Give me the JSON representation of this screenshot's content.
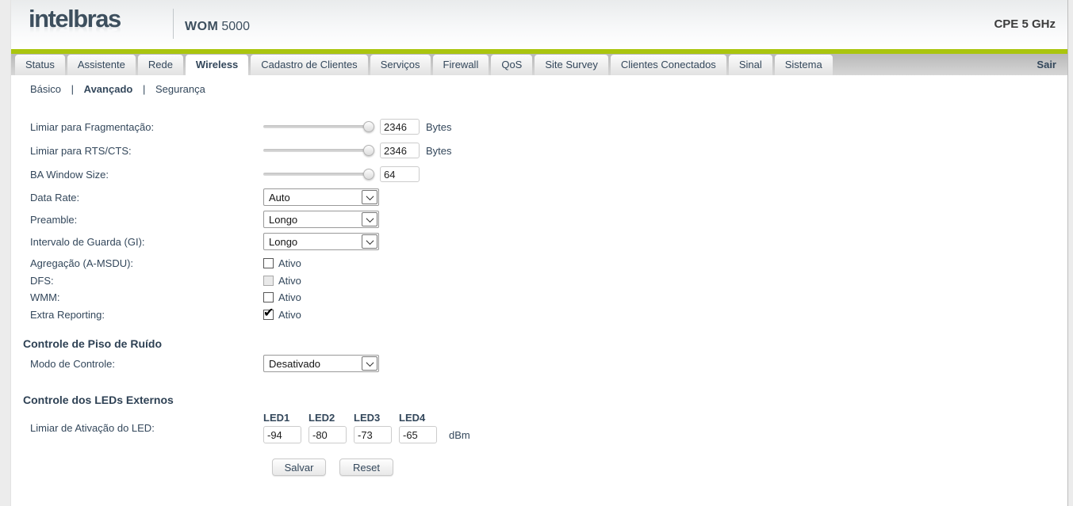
{
  "colors": {
    "accent_green": "#aac50e",
    "brand_text": "#3d4f5e",
    "label_text": "#33475b"
  },
  "header": {
    "logo": "intelbras",
    "model_name": "WOM",
    "model_number": "5000",
    "device_type": "CPE 5 GHz"
  },
  "nav": {
    "tabs": [
      {
        "label": "Status",
        "active": false
      },
      {
        "label": "Assistente",
        "active": false
      },
      {
        "label": "Rede",
        "active": false
      },
      {
        "label": "Wireless",
        "active": true
      },
      {
        "label": "Cadastro de Clientes",
        "active": false
      },
      {
        "label": "Serviços",
        "active": false
      },
      {
        "label": "Firewall",
        "active": false
      },
      {
        "label": "QoS",
        "active": false
      },
      {
        "label": "Site Survey",
        "active": false
      },
      {
        "label": "Clientes Conectados",
        "active": false
      },
      {
        "label": "Sinal",
        "active": false
      },
      {
        "label": "Sistema",
        "active": false
      }
    ],
    "logout_label": "Sair"
  },
  "subnav": {
    "separator": "|",
    "items": [
      {
        "label": "Básico",
        "active": false
      },
      {
        "label": "Avançado",
        "active": true
      },
      {
        "label": "Segurança",
        "active": false
      }
    ]
  },
  "form": {
    "sliders": [
      {
        "label": "Limiar para Fragmentação:",
        "value": "2346",
        "unit": "Bytes"
      },
      {
        "label": "Limiar para RTS/CTS:",
        "value": "2346",
        "unit": "Bytes"
      },
      {
        "label": "BA Window Size:",
        "value": "64",
        "unit": ""
      }
    ],
    "selects": [
      {
        "label": "Data Rate:",
        "value": "Auto"
      },
      {
        "label": "Preamble:",
        "value": "Longo"
      },
      {
        "label": "Intervalo de Guarda (GI):",
        "value": "Longo"
      }
    ],
    "checkboxes": [
      {
        "label": "Agregação (A-MSDU):",
        "option": "Ativo",
        "checked": false,
        "disabled": false
      },
      {
        "label": "DFS:",
        "option": "Ativo",
        "checked": false,
        "disabled": true
      },
      {
        "label": "WMM:",
        "option": "Ativo",
        "checked": false,
        "disabled": false
      },
      {
        "label": "Extra Reporting:",
        "option": "Ativo",
        "checked": true,
        "disabled": false
      }
    ],
    "noise_control": {
      "title": "Controle de Piso de Ruído",
      "label": "Modo de Controle:",
      "value": "Desativado"
    },
    "led_control": {
      "title": "Controle dos LEDs Externos",
      "label": "Limiar de Ativação do LED:",
      "columns": [
        {
          "name": "LED1",
          "value": "-94"
        },
        {
          "name": "LED2",
          "value": "-80"
        },
        {
          "name": "LED3",
          "value": "-73"
        },
        {
          "name": "LED4",
          "value": "-65"
        }
      ],
      "unit": "dBm"
    },
    "actions": {
      "save": "Salvar",
      "reset": "Reset"
    }
  }
}
